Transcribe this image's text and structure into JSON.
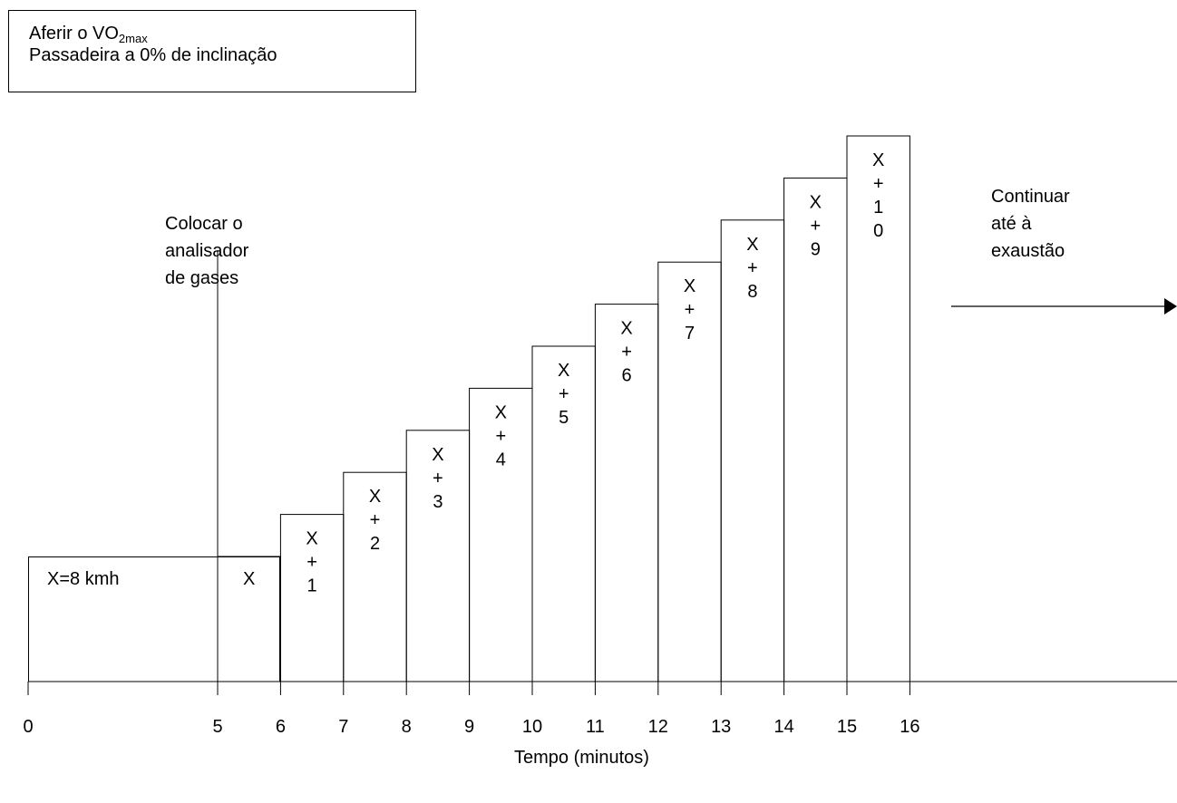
{
  "note_box": {
    "line1_prefix": "Aferir o VO",
    "line1_sub": "2max",
    "line2": "Passadeira a 0% de inclinação"
  },
  "first_stage": {
    "label": "X=8 kmh"
  },
  "annotations": {
    "analyzer": [
      "Colocar o",
      "analisador",
      "de gases"
    ],
    "continue": [
      "Continuar",
      "até à",
      "exaustão"
    ]
  },
  "x_axis": {
    "label": "Tempo (minutos)",
    "ticks": [
      "0",
      "5",
      "6",
      "7",
      "8",
      "9",
      "10",
      "11",
      "12",
      "13",
      "14",
      "15",
      "16"
    ]
  },
  "stages": [
    {
      "start": 5,
      "end": 6,
      "label": [
        "X"
      ]
    },
    {
      "start": 6,
      "end": 7,
      "label": [
        "X",
        "+",
        "1"
      ]
    },
    {
      "start": 7,
      "end": 8,
      "label": [
        "X",
        "+",
        "2"
      ]
    },
    {
      "start": 8,
      "end": 9,
      "label": [
        "X",
        "+",
        "3"
      ]
    },
    {
      "start": 9,
      "end": 10,
      "label": [
        "X",
        "+",
        "4"
      ]
    },
    {
      "start": 10,
      "end": 11,
      "label": [
        "X",
        "+",
        "5"
      ]
    },
    {
      "start": 11,
      "end": 12,
      "label": [
        "X",
        "+",
        "6"
      ]
    },
    {
      "start": 12,
      "end": 13,
      "label": [
        "X",
        "+",
        "7"
      ]
    },
    {
      "start": 13,
      "end": 14,
      "label": [
        "X",
        "+",
        "8"
      ]
    },
    {
      "start": 14,
      "end": 15,
      "label": [
        "X",
        "+",
        "9"
      ]
    },
    {
      "start": 15,
      "end": 16,
      "label": [
        "X",
        "+",
        "1",
        "0"
      ]
    }
  ]
}
